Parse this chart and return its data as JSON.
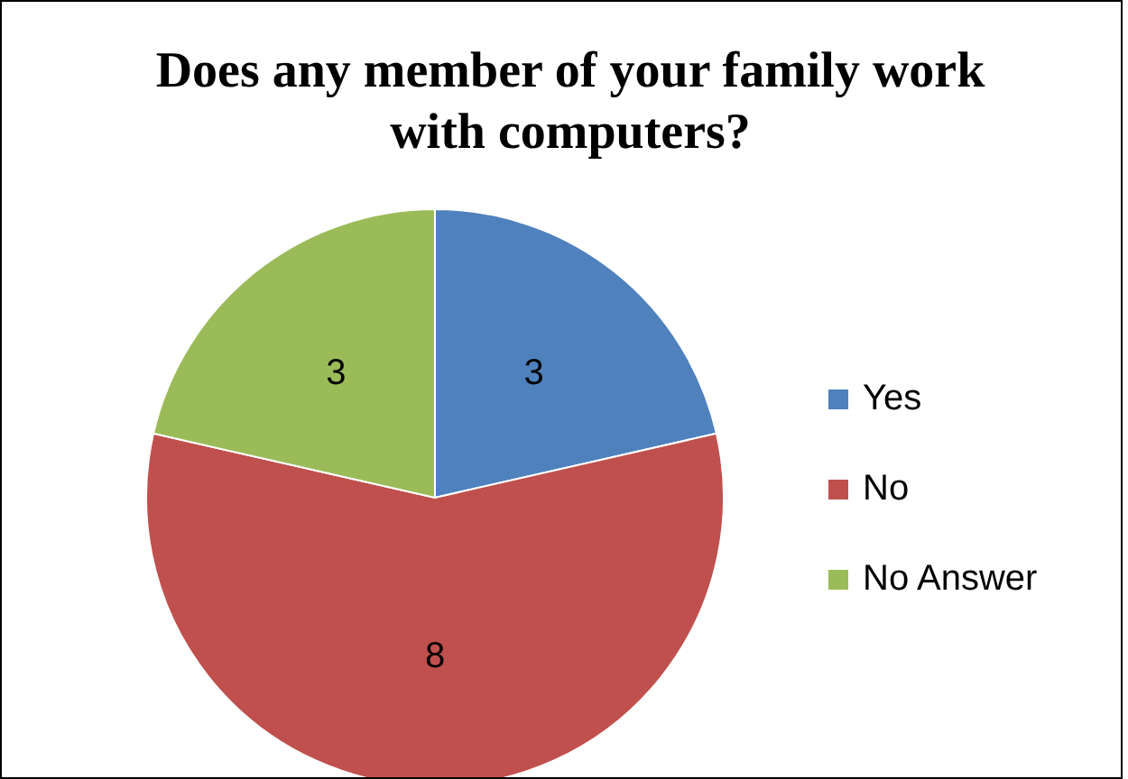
{
  "chart_data": {
    "type": "pie",
    "title": "Does any member of your family work with computers?",
    "categories": [
      "Yes",
      "No",
      "No Answer"
    ],
    "values": [
      3,
      8,
      3
    ],
    "colors": [
      "#4f81bd",
      "#c0504d",
      "#9bbb59"
    ],
    "data_labels": true,
    "legend": "right"
  }
}
